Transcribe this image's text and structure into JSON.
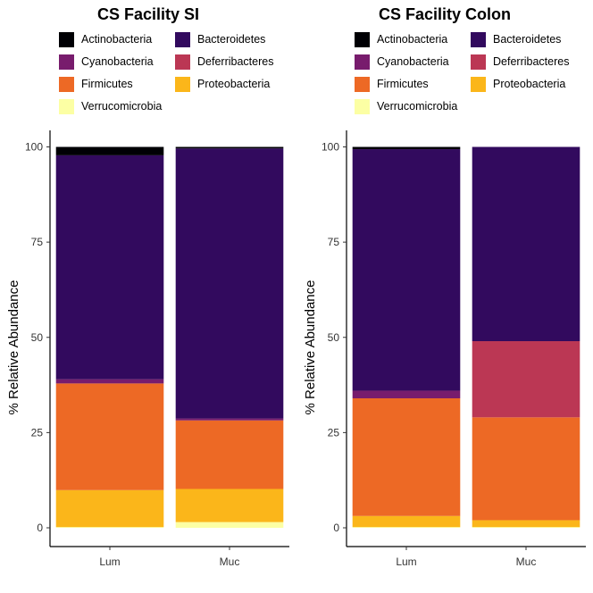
{
  "colors": {
    "Actinobacteria": "#000004",
    "Bacteroidetes": "#320A5E",
    "Cyanobacteria": "#781C6D",
    "Deferribacteres": "#BB3754",
    "Firmicutes": "#ED6925",
    "Proteobacteria": "#FBB61A",
    "Verrucomicrobia": "#FCFFA4"
  },
  "legend_order": [
    "Actinobacteria",
    "Bacteroidetes",
    "Cyanobacteria",
    "Deferribacteres",
    "Firmicutes",
    "Proteobacteria",
    "Verrucomicrobia"
  ],
  "chart_data": [
    {
      "type": "bar",
      "stacked": true,
      "title": "CS Facility SI",
      "ylabel": "% Relative Abundance",
      "xlabel": "",
      "ylim": [
        0,
        100
      ],
      "yticks": [
        0,
        25,
        50,
        75,
        100
      ],
      "categories": [
        "Lum",
        "Muc"
      ],
      "series": [
        {
          "name": "Verrucomicrobia",
          "values": [
            0.2,
            1.5
          ]
        },
        {
          "name": "Proteobacteria",
          "values": [
            9.7,
            8.7
          ]
        },
        {
          "name": "Firmicutes",
          "values": [
            28.0,
            18.0
          ]
        },
        {
          "name": "Deferribacteres",
          "values": [
            0.0,
            0.0
          ]
        },
        {
          "name": "Cyanobacteria",
          "values": [
            1.1,
            0.5
          ]
        },
        {
          "name": "Bacteroidetes",
          "values": [
            58.8,
            70.9
          ]
        },
        {
          "name": "Actinobacteria",
          "values": [
            2.2,
            0.4
          ]
        }
      ],
      "legend": "top"
    },
    {
      "type": "bar",
      "stacked": true,
      "title": "CS Facility Colon",
      "ylabel": "% Relative Abundance",
      "xlabel": "",
      "ylim": [
        0,
        100
      ],
      "yticks": [
        0,
        25,
        50,
        75,
        100
      ],
      "categories": [
        "Lum",
        "Muc"
      ],
      "series": [
        {
          "name": "Verrucomicrobia",
          "values": [
            0.2,
            0.2
          ]
        },
        {
          "name": "Proteobacteria",
          "values": [
            2.9,
            1.8
          ]
        },
        {
          "name": "Firmicutes",
          "values": [
            30.9,
            27.0
          ]
        },
        {
          "name": "Deferribacteres",
          "values": [
            0.0,
            20.0
          ]
        },
        {
          "name": "Cyanobacteria",
          "values": [
            2.0,
            0.0
          ]
        },
        {
          "name": "Bacteroidetes",
          "values": [
            63.4,
            51.0
          ]
        },
        {
          "name": "Actinobacteria",
          "values": [
            0.6,
            0.0
          ]
        }
      ],
      "legend": "top"
    }
  ]
}
